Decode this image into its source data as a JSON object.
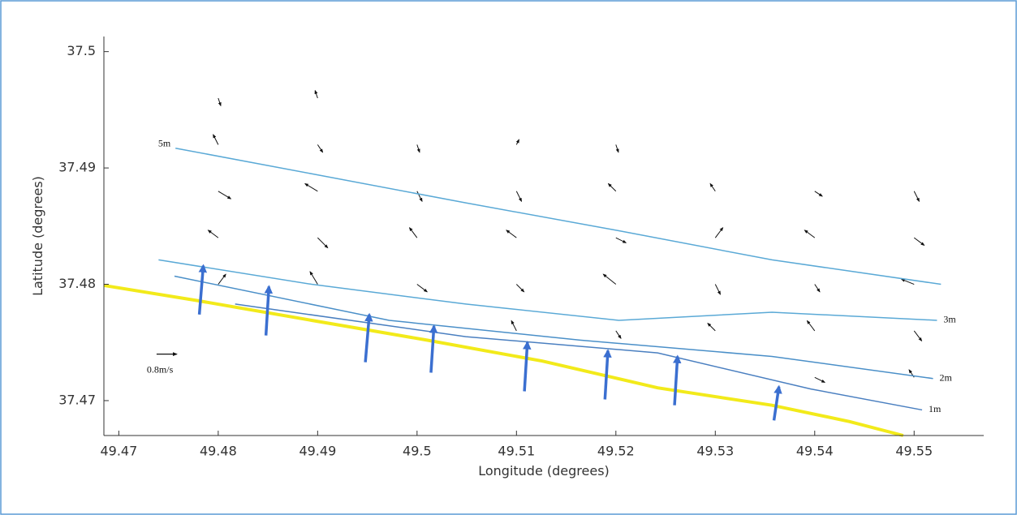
{
  "chart_data": {
    "type": "quiver",
    "xlabel": "Longitude (degrees)",
    "ylabel": "Latitude (degrees)",
    "xlim": [
      49.4685,
      49.557
    ],
    "ylim": [
      37.467,
      37.5013
    ],
    "xticks": [
      49.47,
      49.48,
      49.49,
      49.5,
      49.51,
      49.52,
      49.53,
      49.54,
      49.55
    ],
    "yticks": [
      37.47,
      37.48,
      37.49,
      37.5
    ],
    "vectors": {
      "color": "#111111",
      "x": [
        49.48,
        49.48,
        49.48,
        49.48,
        49.48,
        49.49,
        49.49,
        49.49,
        49.49,
        49.49,
        49.5,
        49.5,
        49.5,
        49.5,
        49.51,
        49.51,
        49.51,
        49.51,
        49.51,
        49.52,
        49.52,
        49.52,
        49.52,
        49.52,
        49.53,
        49.53,
        49.53,
        49.53,
        49.54,
        49.54,
        49.54,
        49.54,
        49.54,
        49.55,
        49.55,
        49.55,
        49.55,
        49.55
      ],
      "y": [
        37.48,
        37.484,
        37.488,
        37.492,
        37.496,
        37.48,
        37.484,
        37.488,
        37.492,
        37.496,
        37.48,
        37.484,
        37.488,
        37.492,
        37.476,
        37.48,
        37.484,
        37.488,
        37.492,
        37.476,
        37.48,
        37.484,
        37.488,
        37.492,
        37.476,
        37.48,
        37.484,
        37.488,
        37.472,
        37.476,
        37.48,
        37.484,
        37.488,
        37.472,
        37.476,
        37.48,
        37.484,
        37.488
      ],
      "u": [
        0.3,
        -0.4,
        0.5,
        -0.2,
        0.1,
        -0.3,
        0.4,
        -0.5,
        0.2,
        -0.1,
        0.4,
        -0.3,
        0.2,
        0.1,
        -0.2,
        0.3,
        -0.4,
        0.2,
        0.1,
        0.2,
        -0.5,
        0.4,
        -0.3,
        0.1,
        -0.3,
        0.2,
        0.3,
        -0.2,
        0.4,
        -0.3,
        0.2,
        -0.4,
        0.3,
        -0.2,
        0.3,
        -0.5,
        0.4,
        0.2
      ],
      "v": [
        0.4,
        0.3,
        -0.3,
        0.4,
        -0.3,
        0.5,
        -0.4,
        0.3,
        -0.3,
        0.3,
        -0.3,
        0.4,
        -0.4,
        -0.3,
        0.4,
        -0.3,
        0.3,
        -0.4,
        0.2,
        -0.3,
        0.4,
        -0.2,
        0.3,
        -0.3,
        0.3,
        -0.4,
        0.4,
        0.3,
        -0.2,
        0.4,
        -0.3,
        0.3,
        -0.2,
        0.3,
        -0.4,
        0.2,
        -0.3,
        -0.4
      ]
    },
    "scale_arrow": {
      "x": 49.4738,
      "y": 37.474,
      "u": 0.8,
      "label": "0.8m/s"
    },
    "series": [
      {
        "name": "5m",
        "color": "#5aa9d6",
        "label_position": "start",
        "x": [
          49.4757,
          49.4894,
          49.5049,
          49.5203,
          49.5357,
          49.5527
        ],
        "y": [
          37.4917,
          37.4895,
          37.487,
          37.4846,
          37.4821,
          37.48
        ]
      },
      {
        "name": "3m",
        "color": "#5aa9d6",
        "label_position": "end",
        "x": [
          49.474,
          49.4894,
          49.5049,
          49.5203,
          49.5357,
          49.5523
        ],
        "y": [
          37.4821,
          37.48,
          37.4783,
          37.4769,
          37.4776,
          37.4769
        ]
      },
      {
        "name": "2m",
        "color": "#4a8fc8",
        "label_position": "end",
        "x": [
          49.4756,
          49.4972,
          49.5164,
          49.5357,
          49.5519
        ],
        "y": [
          37.4807,
          37.4769,
          37.4752,
          37.4738,
          37.4719
        ]
      },
      {
        "name": "1m",
        "color": "#4a7fc0",
        "label_position": "end",
        "x": [
          49.4817,
          49.5049,
          49.5242,
          49.5396,
          49.5508
        ],
        "y": [
          37.4783,
          37.4755,
          37.4741,
          37.471,
          37.4692
        ]
      },
      {
        "color": "#f2ea1a",
        "x": [
          49.4685,
          49.4779,
          49.4894,
          49.501,
          49.5126,
          49.5242,
          49.5357,
          49.5435,
          49.5489
        ],
        "y": [
          37.4799,
          37.4786,
          37.4769,
          37.4752,
          37.4734,
          37.4711,
          37.4696,
          37.4682,
          37.467
        ]
      }
    ],
    "arrows": {
      "color": "#3b6fd0",
      "x0": [
        49.4781,
        49.4848,
        49.4948,
        49.5014,
        49.5108,
        49.5189,
        49.5259,
        49.5359
      ],
      "y0": [
        37.4774,
        37.4756,
        37.4733,
        37.4724,
        37.4708,
        37.4701,
        37.4696,
        37.4683
      ],
      "x1": [
        49.4785,
        49.4851,
        49.4952,
        49.5017,
        49.5111,
        49.5192,
        49.5262,
        49.5364
      ],
      "y1": [
        37.4816,
        37.4798,
        37.4774,
        37.4764,
        37.475,
        37.4743,
        37.4738,
        37.4712
      ]
    }
  }
}
